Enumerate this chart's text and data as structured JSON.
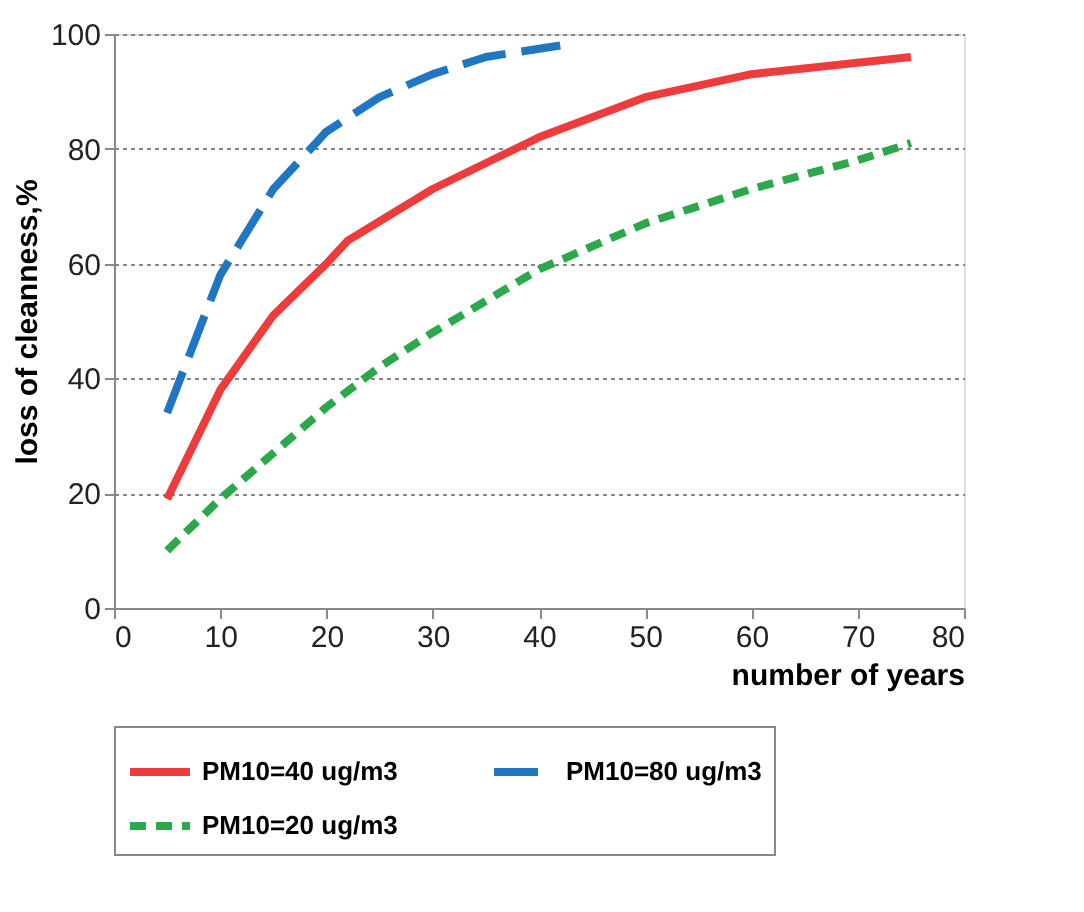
{
  "chart_data": {
    "type": "line",
    "xlabel": "number of years",
    "ylabel": "loss of cleanness,%",
    "xlim": [
      0,
      80
    ],
    "xticks": [
      0,
      10,
      20,
      30,
      40,
      50,
      60,
      70,
      80
    ],
    "ylim": [
      0,
      100
    ],
    "yticks": [
      0,
      20,
      40,
      60,
      80,
      100
    ],
    "grid": "y",
    "legend": "bottom",
    "marker": "none",
    "series": [
      {
        "name": "PM10=40 ug/m3",
        "color": "#ee3b3b",
        "line_style": "solid",
        "x": [
          5,
          10,
          15,
          20,
          22,
          30,
          40,
          50,
          60,
          75
        ],
        "values": [
          19,
          38,
          51,
          60,
          64,
          73,
          82,
          89,
          93,
          96
        ]
      },
      {
        "name": "PM10=80 ug/m3",
        "color": "#1f77c4",
        "line_style": "dashed",
        "x": [
          5,
          10,
          15,
          20,
          25,
          30,
          35,
          42
        ],
        "values": [
          34,
          58,
          73,
          83,
          89,
          93,
          96,
          98
        ]
      },
      {
        "name": "PM10=20 ug/m3",
        "color": "#2ca84a",
        "line_style": "dotted",
        "x": [
          5,
          10,
          20,
          25,
          30,
          40,
          50,
          60,
          70,
          75
        ],
        "values": [
          10,
          19,
          35,
          42,
          48,
          59,
          67,
          73,
          78,
          81
        ]
      }
    ]
  }
}
